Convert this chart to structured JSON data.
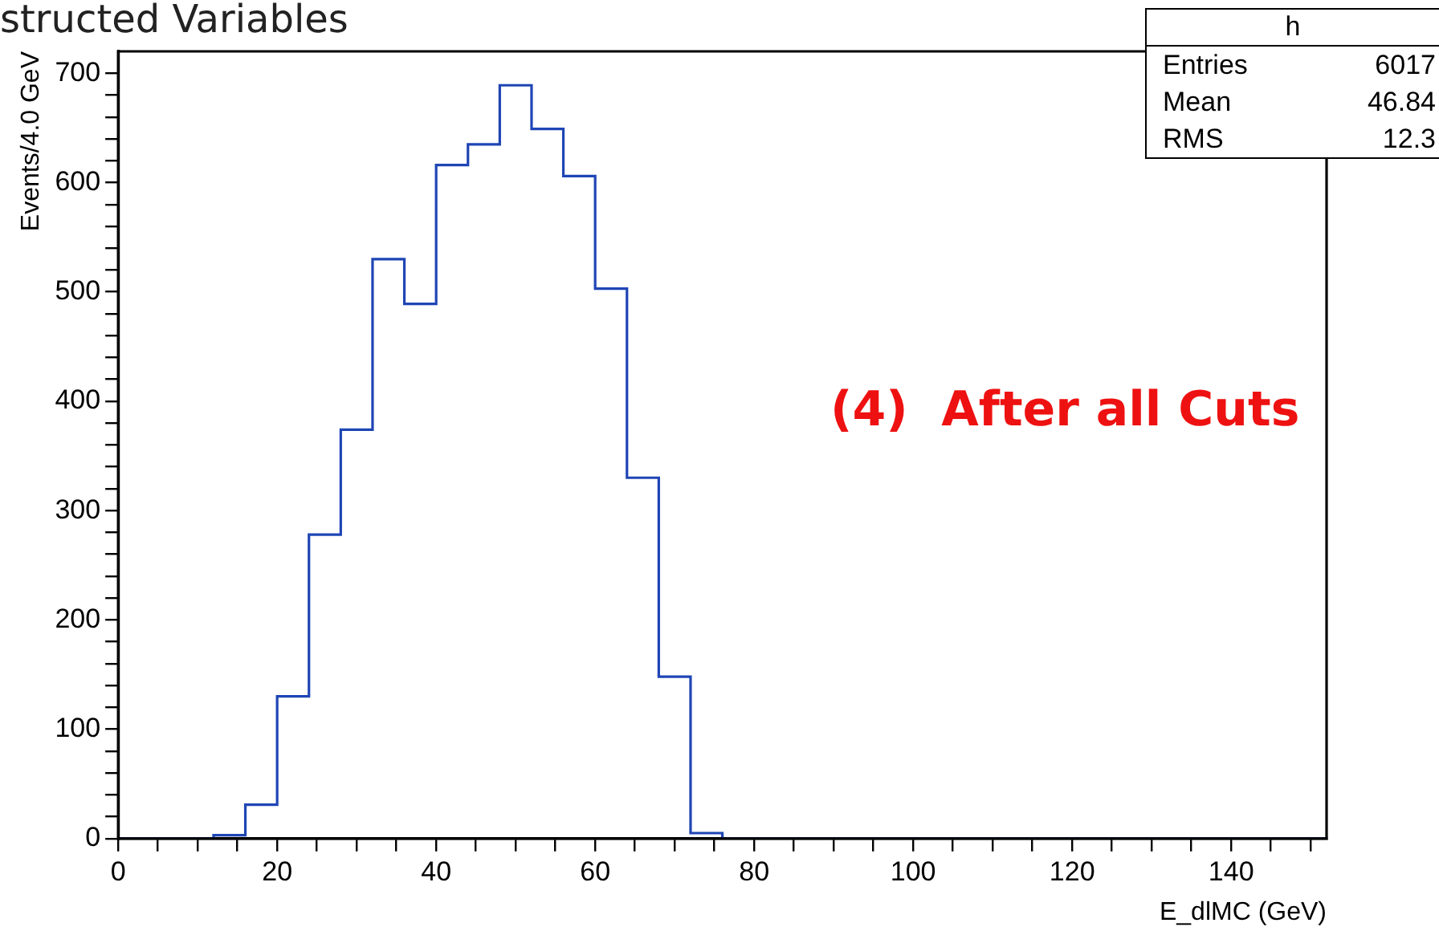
{
  "chart_data": {
    "type": "histogram",
    "title": "structed Variables",
    "xlabel": "E_dlMC (GeV)",
    "ylabel": "Events/4.0 GeV",
    "bins": [
      0,
      4,
      8,
      12,
      16,
      20,
      24,
      28,
      32,
      36,
      40,
      44,
      48,
      52,
      56,
      60,
      64,
      68,
      72,
      76,
      80,
      84,
      88,
      92,
      96,
      100,
      104,
      108,
      112,
      116,
      120,
      124,
      128,
      132,
      136,
      140,
      144,
      148,
      152
    ],
    "values": [
      0,
      0,
      0,
      3,
      31,
      130,
      278,
      374,
      530,
      489,
      616,
      635,
      689,
      649,
      606,
      503,
      330,
      148,
      5,
      0,
      0,
      0,
      0,
      0,
      0,
      0,
      0,
      0,
      0,
      0,
      0,
      0,
      0,
      0,
      0,
      0,
      0,
      0
    ],
    "color": "#1f45b5",
    "xlim": [
      0,
      152
    ],
    "ylim": [
      0,
      720
    ],
    "xticks": [
      0,
      {
        "value": 5,
        "label": null
      },
      {
        "value": 10,
        "label": null
      },
      {
        "value": 15,
        "label": null
      },
      20,
      {
        "value": 25,
        "label": null
      },
      {
        "value": 30,
        "label": null
      },
      {
        "value": 35,
        "label": null
      },
      40,
      {
        "value": 45,
        "label": null
      },
      {
        "value": 50,
        "label": null
      },
      {
        "value": 55,
        "label": null
      },
      60,
      {
        "value": 65,
        "label": null
      },
      {
        "value": 70,
        "label": null
      },
      {
        "value": 75,
        "label": null
      },
      80,
      {
        "value": 85,
        "label": null
      },
      {
        "value": 90,
        "label": null
      },
      {
        "value": 95,
        "label": null
      },
      100,
      {
        "value": 105,
        "label": null
      },
      {
        "value": 110,
        "label": null
      },
      {
        "value": 115,
        "label": null
      },
      120,
      {
        "value": 125,
        "label": null
      },
      {
        "value": 130,
        "label": null
      },
      {
        "value": 135,
        "label": null
      },
      140,
      {
        "value": 145,
        "label": null
      },
      {
        "value": 150,
        "label": null
      }
    ],
    "yticks": [
      0,
      {
        "value": 20,
        "label": null
      },
      {
        "value": 40,
        "label": null
      },
      {
        "value": 60,
        "label": null
      },
      {
        "value": 80,
        "label": null
      },
      100,
      {
        "value": 120,
        "label": null
      },
      {
        "value": 140,
        "label": null
      },
      {
        "value": 160,
        "label": null
      },
      {
        "value": 180,
        "label": null
      },
      200,
      {
        "value": 220,
        "label": null
      },
      {
        "value": 240,
        "label": null
      },
      {
        "value": 260,
        "label": null
      },
      {
        "value": 280,
        "label": null
      },
      300,
      {
        "value": 320,
        "label": null
      },
      {
        "value": 340,
        "label": null
      },
      {
        "value": 360,
        "label": null
      },
      {
        "value": 380,
        "label": null
      },
      400,
      {
        "value": 420,
        "label": null
      },
      {
        "value": 440,
        "label": null
      },
      {
        "value": 460,
        "label": null
      },
      {
        "value": 480,
        "label": null
      },
      500,
      {
        "value": 520,
        "label": null
      },
      {
        "value": 540,
        "label": null
      },
      {
        "value": 560,
        "label": null
      },
      {
        "value": 580,
        "label": null
      },
      600,
      {
        "value": 620,
        "label": null
      },
      {
        "value": 640,
        "label": null
      },
      {
        "value": 660,
        "label": null
      },
      {
        "value": 680,
        "label": null
      },
      700
    ],
    "annotations": [
      "h",
      "Entries",
      "6017",
      "Mean",
      "46.84",
      "RMS",
      "12.3",
      "(4)  After all Cuts"
    ]
  }
}
